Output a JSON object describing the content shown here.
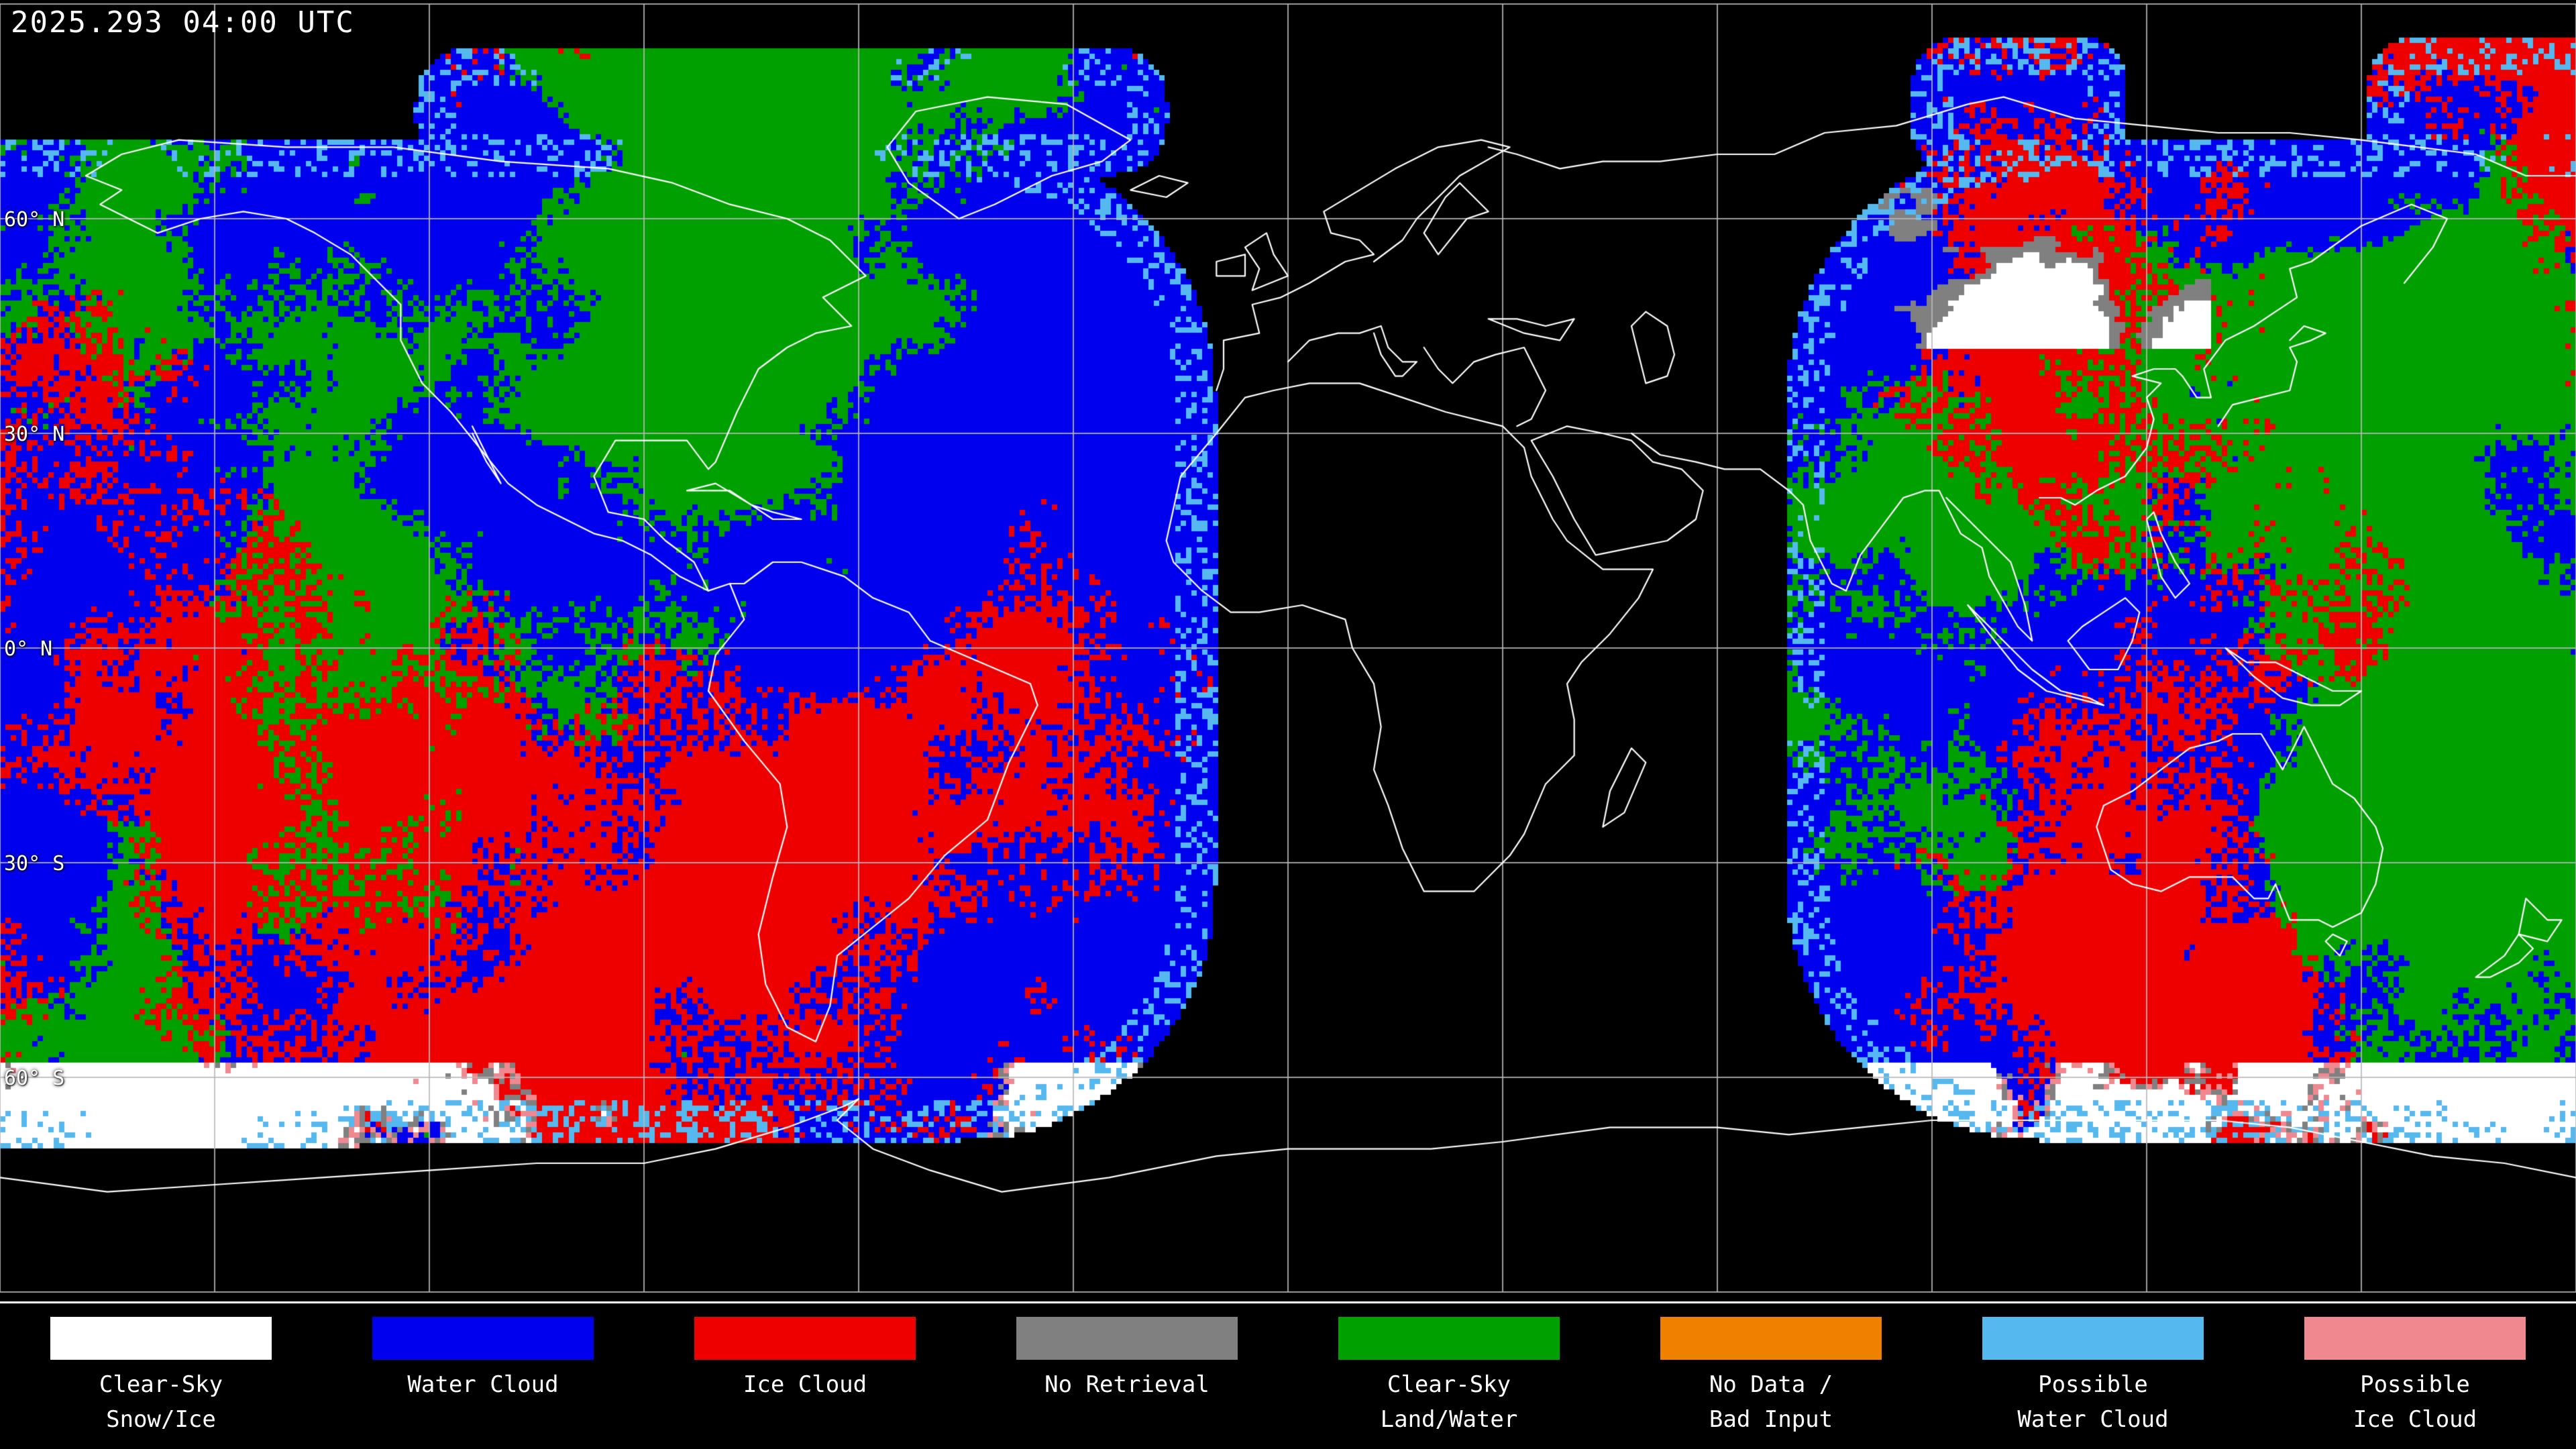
{
  "header": {
    "timestamp": "2025.293 04:00 UTC"
  },
  "map": {
    "background": "#000000",
    "grid_color": "#b8b8b8",
    "coast_color": "#ffffff",
    "lat_labels": [
      {
        "text": "60° N",
        "lat": 60
      },
      {
        "text": "30° N",
        "lat": 30
      },
      {
        "text": "0° N",
        "lat": 0
      },
      {
        "text": "30° S",
        "lat": -30
      },
      {
        "text": "60° S",
        "lat": -60
      }
    ]
  },
  "legend": {
    "items": [
      {
        "name": "clear-sky-snow-ice",
        "color": "#ffffff",
        "line1": "Clear-Sky",
        "line2": "Snow/Ice"
      },
      {
        "name": "water-cloud",
        "color": "#0000ee",
        "line1": "Water Cloud",
        "line2": ""
      },
      {
        "name": "ice-cloud",
        "color": "#ee0000",
        "line1": "Ice Cloud",
        "line2": ""
      },
      {
        "name": "no-retrieval",
        "color": "#808080",
        "line1": "No Retrieval",
        "line2": ""
      },
      {
        "name": "clear-sky-land-water",
        "color": "#00a000",
        "line1": "Clear-Sky",
        "line2": "Land/Water"
      },
      {
        "name": "no-data-bad-input",
        "color": "#f08000",
        "line1": "No Data /",
        "line2": "Bad Input"
      },
      {
        "name": "possible-water-cloud",
        "color": "#55b8ee",
        "line1": "Possible",
        "line2": "Water Cloud"
      },
      {
        "name": "possible-ice-cloud",
        "color": "#f08890",
        "line1": "Possible",
        "line2": "Ice Cloud"
      }
    ]
  }
}
